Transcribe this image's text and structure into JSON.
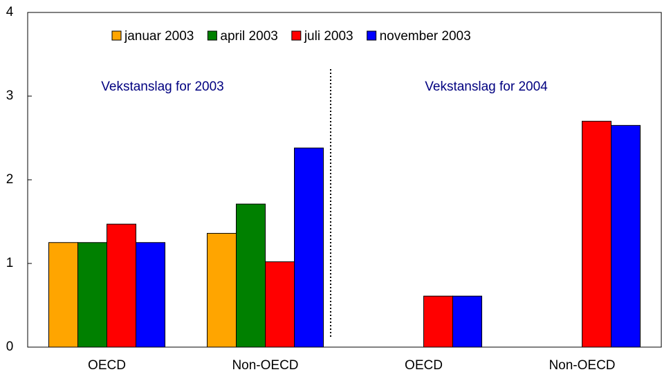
{
  "chart_data": {
    "type": "bar",
    "categories": [
      "OECD",
      "Non-OECD",
      "OECD",
      "Non-OECD"
    ],
    "series": [
      {
        "name": "januar 2003",
        "color": "#ffa500",
        "values": [
          1.25,
          1.36,
          null,
          null
        ]
      },
      {
        "name": "april 2003",
        "color": "#008000",
        "values": [
          1.25,
          1.71,
          null,
          null
        ]
      },
      {
        "name": "juli 2003",
        "color": "#ff0000",
        "values": [
          1.47,
          1.02,
          0.61,
          2.7
        ]
      },
      {
        "name": "november 2003",
        "color": "#0000ff",
        "values": [
          1.25,
          2.38,
          0.61,
          2.65
        ]
      }
    ],
    "annotations": [
      "Vekstanslag for 2003",
      "Vekstanslag for 2004"
    ],
    "ylim": [
      0,
      4
    ],
    "yticks": [
      0,
      1,
      2,
      3,
      4
    ],
    "grid": false,
    "legend": "top"
  }
}
